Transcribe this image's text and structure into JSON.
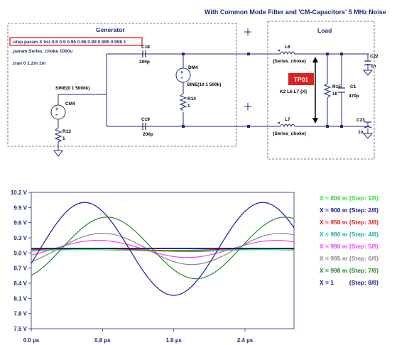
{
  "schematic": {
    "title": "With Common Mode Filter and 'CM-Capacitors'   5 MHz Noise",
    "generator_title": "Generator",
    "load_title": "Load",
    "directives": {
      "step": ".step param X list 0.8 0.9 0.95 0.98 0.99 0.995 0.998 1",
      "param": ".param Series_choke 1000u",
      "tran": ".tran 0 1.2m 1m"
    },
    "components": {
      "cm4": "CM4",
      "sine1": "SINE(0 1 5000k)",
      "r13": "R13",
      "r13_val": "1",
      "c18": "C18",
      "c18_val": "200p",
      "c19": "C19",
      "c19_val": "200p",
      "dm4": "DM4",
      "sine2": "SINE(10 1 500k)",
      "r14": "R14",
      "r14_val": "1",
      "l6": "L6",
      "l6_val": "{Series_choke}",
      "l7": "L7",
      "l7_val": "{Series_choke}",
      "tp01": "TP01",
      "k2": "K2 L6 L7 {X}",
      "r15": "R15",
      "r15_val": "10",
      "c1": "C1",
      "c1_val": "470p",
      "c22": "C22",
      "c22_val": "1n",
      "c23": "C23",
      "c23_val": "1n"
    },
    "colors": {
      "wire": "#1f2a7a",
      "tp_badge": "#e02020",
      "highlight_box": "#e02020"
    }
  },
  "chart_data": {
    "type": "line",
    "title": "",
    "xlabel": "",
    "ylabel": "",
    "xlim": [
      0.0,
      2.95
    ],
    "ylim": [
      7.5,
      10.2
    ],
    "x_ticks": [
      0.0,
      0.8,
      1.6,
      2.4
    ],
    "x_tick_labels": [
      "0.0 µs",
      "0.8 µs",
      "1.6 µs",
      "2.4 µs"
    ],
    "y_ticks": [
      10.2,
      9.9,
      9.6,
      9.3,
      9.0,
      8.7,
      8.4,
      8.1,
      7.8,
      7.5
    ],
    "y_tick_labels": [
      "10.2 V",
      "9.9 V",
      "9.6 V",
      "9.3 V",
      "9.0 V",
      "8.7 V",
      "8.4 V",
      "8.1 V",
      "7.8 V",
      "7.5 V"
    ],
    "grid": false,
    "legend_position": "right",
    "period_us": 2.0,
    "series": [
      {
        "name": "X = 800 m",
        "step": "(Step: 1/8)",
        "color": "#33dd33",
        "offset": 9.05,
        "amplitude": 0.015,
        "peak_us": 0.6
      },
      {
        "name": "X = 900 m",
        "step": "(Step: 2/8)",
        "color": "#1a1a9a",
        "offset": 9.08,
        "amplitude": 0.92,
        "peak_us": 0.6
      },
      {
        "name": "X = 950 m",
        "step": "(Step: 3/8)",
        "color": "#dd2020",
        "offset": 9.07,
        "amplitude": 0.02,
        "peak_us": 0.6
      },
      {
        "name": "X = 980 m",
        "step": "(Step: 4/8)",
        "color": "#22aaaa",
        "offset": 9.06,
        "amplitude": 0.035,
        "peak_us": 0.75
      },
      {
        "name": "X = 990 m",
        "step": "(Step: 5/8)",
        "color": "#ee44ee",
        "offset": 9.08,
        "amplitude": 0.17,
        "peak_us": 0.75
      },
      {
        "name": "X = 995 m",
        "step": "(Step: 6/8)",
        "color": "#888888",
        "offset": 9.08,
        "amplitude": 0.31,
        "peak_us": 0.8
      },
      {
        "name": "X = 998 m",
        "step": "(Step: 7/8)",
        "color": "#228822",
        "offset": 9.1,
        "amplitude": 0.61,
        "peak_us": 0.85
      },
      {
        "name": "X = 1",
        "step": "(Step: 8/8)",
        "color": "#1a1a9a",
        "offset": 9.09,
        "amplitude": 0.0,
        "peak_us": 0.6
      }
    ]
  }
}
